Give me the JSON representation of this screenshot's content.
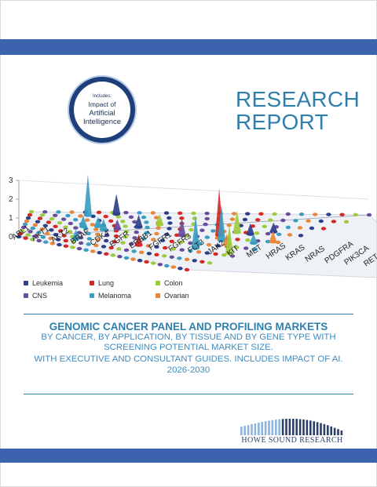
{
  "badge": {
    "line1": "Includes:",
    "line2": "Impact of",
    "line3": "Artificial",
    "line4": "Intelligence"
  },
  "report": {
    "line1": "RESEARCH",
    "line2": "REPORT"
  },
  "chart_data": {
    "type": "bar",
    "categories": [
      "ABL1",
      "AKT1",
      "AKT2",
      "BRAF",
      "CDK4",
      "EGFR",
      "ERBB1",
      "FGFR1",
      "FGFR3",
      "FLT3",
      "JAK2",
      "KIT",
      "MET",
      "HRAS",
      "KRAS",
      "NRAS",
      "PDGFRA",
      "PIK3CA",
      "RET"
    ],
    "series": [
      {
        "name": "Leukemia"
      },
      {
        "name": "Lung"
      },
      {
        "name": "Colon"
      },
      {
        "name": "CNS"
      },
      {
        "name": "Melanoma"
      },
      {
        "name": "Ovarian"
      }
    ],
    "yticks": [
      "0",
      "1",
      "2",
      "3"
    ],
    "ylim": [
      0,
      3
    ]
  },
  "legend": [
    {
      "label": "Leukemia",
      "color": "#2e3f8c"
    },
    {
      "label": "Lung",
      "color": "#d42a25"
    },
    {
      "label": "Colon",
      "color": "#9ccc3c"
    },
    {
      "label": "CNS",
      "color": "#6a4c9c"
    },
    {
      "label": "Melanoma",
      "color": "#3a9ec0"
    },
    {
      "label": "Ovarian",
      "color": "#e8873a"
    }
  ],
  "title": {
    "main": "GENOMIC CANCER PANEL AND PROFILING MARKETS",
    "sub1": "BY CANCER, BY APPLICATION, BY TISSUE AND BY GENE TYPE WITH",
    "sub2": "SCREENING POTENTIAL MARKET SIZE.",
    "sub3": "WITH EXECUTIVE AND CONSULTANT GUIDES. INCLUDES IMPACT OF AI.",
    "sub4": "2026-2030"
  },
  "publisher": {
    "name": "HOWE SOUND RESEARCH"
  }
}
